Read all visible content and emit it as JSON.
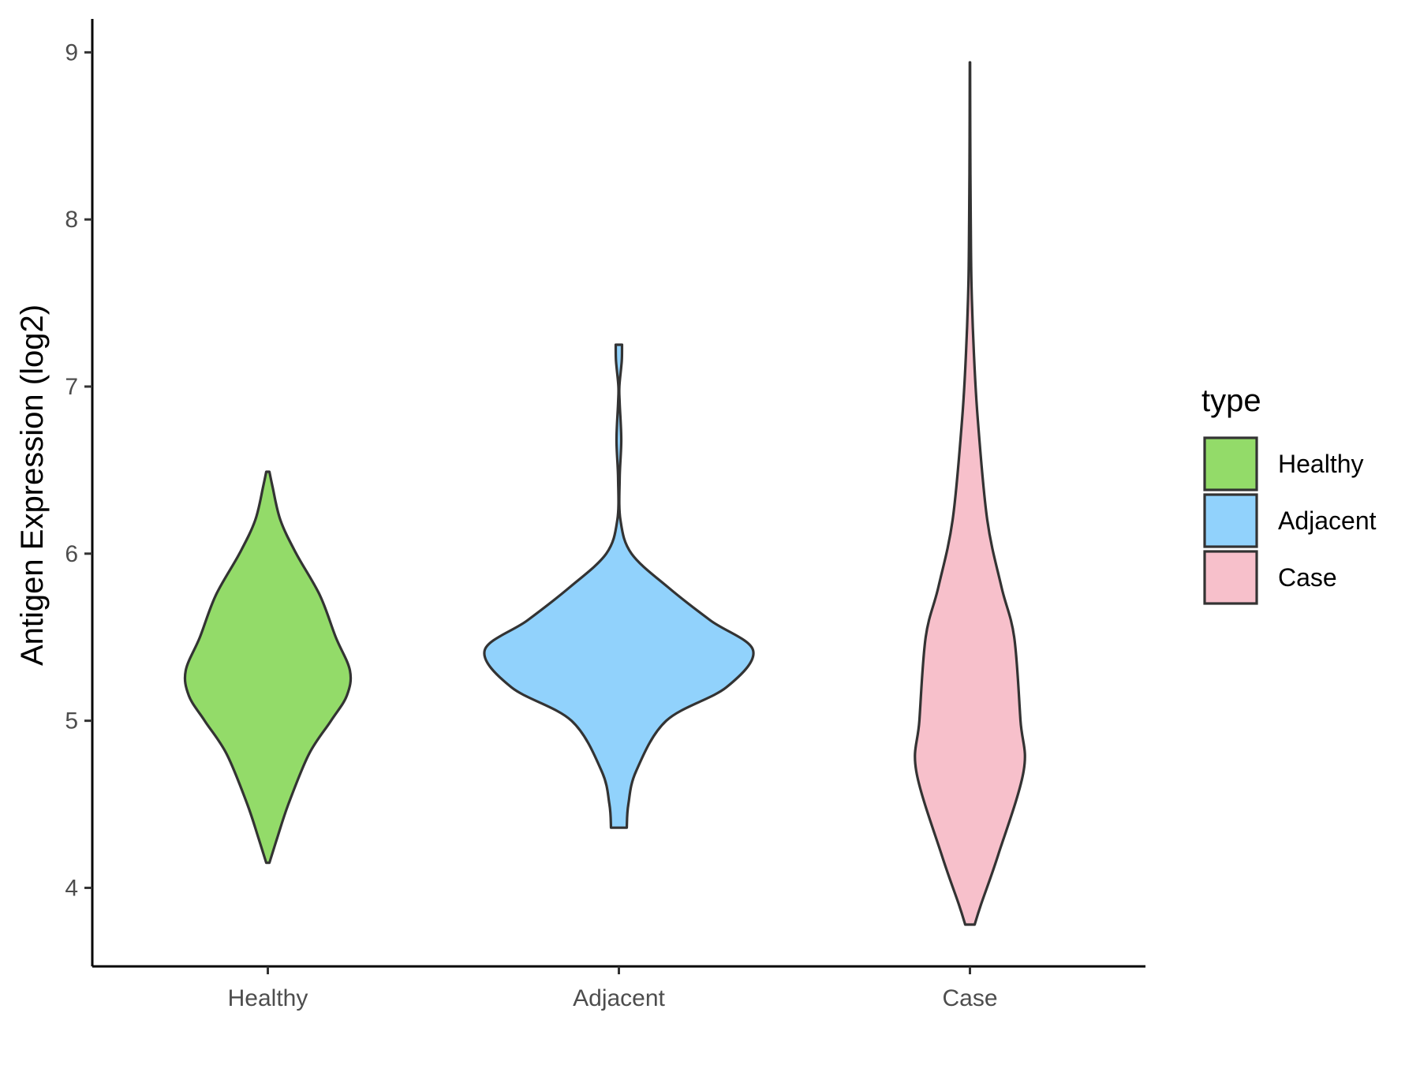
{
  "chart_data": {
    "type": "violin",
    "ylabel": "Antigen Expression (log2)",
    "xlabel": "",
    "ylim": [
      3.53,
      9.2
    ],
    "yticks": [
      4,
      5,
      6,
      7,
      8,
      9
    ],
    "categories": [
      "Healthy",
      "Adjacent",
      "Case"
    ],
    "legend": {
      "title": "type",
      "position": "right",
      "entries": [
        "Healthy",
        "Adjacent",
        "Case"
      ]
    },
    "grid": false,
    "series": [
      {
        "name": "Healthy",
        "color": "#93DB69",
        "range": [
          4.15,
          6.49
        ],
        "profile": [
          [
            4.15,
            0.01
          ],
          [
            4.3,
            0.06
          ],
          [
            4.5,
            0.13
          ],
          [
            4.8,
            0.26
          ],
          [
            5.0,
            0.4
          ],
          [
            5.15,
            0.5
          ],
          [
            5.3,
            0.52
          ],
          [
            5.5,
            0.43
          ],
          [
            5.75,
            0.33
          ],
          [
            6.0,
            0.18
          ],
          [
            6.2,
            0.08
          ],
          [
            6.4,
            0.03
          ],
          [
            6.49,
            0.01
          ]
        ]
      },
      {
        "name": "Adjacent",
        "color": "#91D2FC",
        "range": [
          4.36,
          7.25
        ],
        "profile": [
          [
            4.36,
            0.05
          ],
          [
            4.5,
            0.06
          ],
          [
            4.7,
            0.11
          ],
          [
            5.0,
            0.3
          ],
          [
            5.2,
            0.68
          ],
          [
            5.42,
            0.85
          ],
          [
            5.6,
            0.58
          ],
          [
            5.8,
            0.31
          ],
          [
            6.0,
            0.08
          ],
          [
            6.2,
            0.01
          ],
          [
            6.45,
            0.005
          ],
          [
            6.68,
            0.015
          ],
          [
            6.9,
            0.005
          ],
          [
            7.0,
            0.003
          ],
          [
            7.15,
            0.018
          ],
          [
            7.25,
            0.02
          ]
        ]
      },
      {
        "name": "Case",
        "color": "#F7C0CB",
        "range": [
          3.78,
          8.94
        ],
        "profile": [
          [
            3.78,
            0.03
          ],
          [
            3.9,
            0.07
          ],
          [
            4.2,
            0.18
          ],
          [
            4.7,
            0.34
          ],
          [
            5.0,
            0.32
          ],
          [
            5.5,
            0.28
          ],
          [
            5.8,
            0.2
          ],
          [
            6.2,
            0.11
          ],
          [
            6.8,
            0.05
          ],
          [
            7.2,
            0.025
          ],
          [
            7.6,
            0.01
          ],
          [
            8.0,
            0.005
          ],
          [
            8.5,
            0.002
          ],
          [
            8.94,
            0.001
          ]
        ]
      }
    ]
  }
}
